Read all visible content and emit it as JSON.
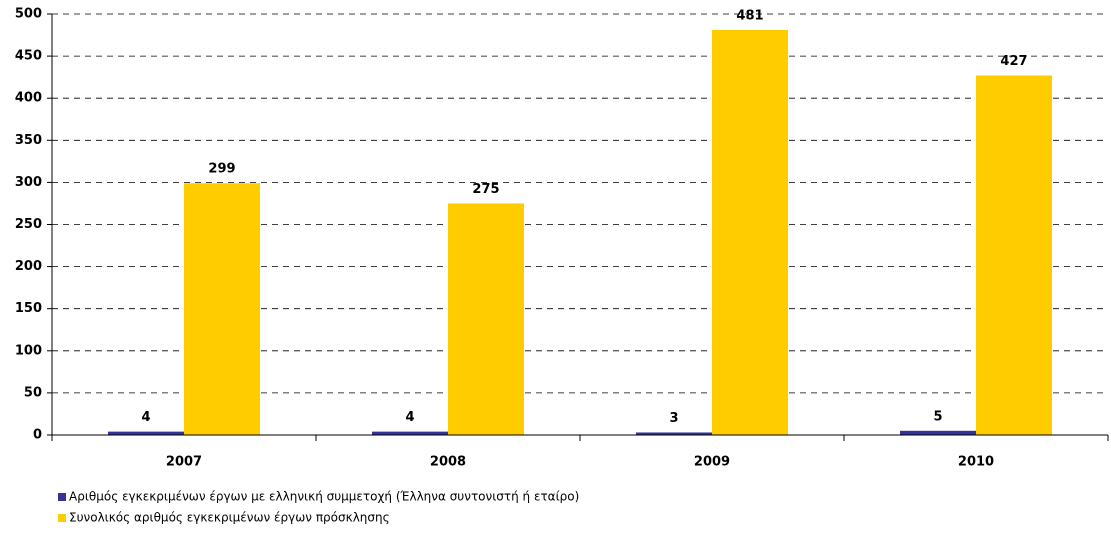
{
  "chart_data": {
    "type": "bar",
    "categories": [
      "2007",
      "2008",
      "2009",
      "2010"
    ],
    "series": [
      {
        "name": "Αριθμός εγκεκριμένων έργων με ελληνική συμμετοχή (Έλληνα συντονιστή ή εταίρο)",
        "color": "#333399",
        "values": [
          4,
          4,
          3,
          5
        ]
      },
      {
        "name": "Συνολικός αριθμός εγκεκριμένων έργων πρόσκλησης",
        "color": "#ffcc00",
        "values": [
          299,
          275,
          481,
          427
        ]
      }
    ],
    "ylim": [
      0,
      500
    ],
    "yticks": [
      0,
      50,
      100,
      150,
      200,
      250,
      300,
      350,
      400,
      450,
      500
    ],
    "grid": true,
    "legend": "bottom"
  }
}
